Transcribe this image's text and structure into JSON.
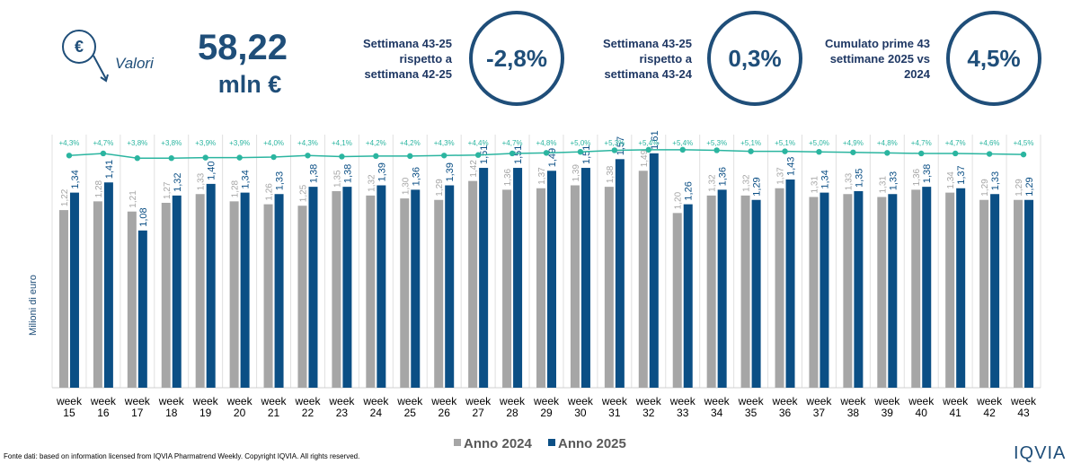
{
  "header": {
    "icon_label": "Valori",
    "total": "58,22",
    "unit": "mln €"
  },
  "kpis": [
    {
      "label": "Settimana 43-25 rispetto a settimana 42-25",
      "value": "-2,8%"
    },
    {
      "label": "Settimana 43-25 rispetto a settimana 43-24",
      "value": "0,3%"
    },
    {
      "label": "Cumulato prime 43 settimane 2025 vs 2024",
      "value": "4,5%"
    }
  ],
  "chart_data": {
    "type": "bar",
    "y_label": "Milioni di euro",
    "categories": [
      "week 15",
      "week 16",
      "week 17",
      "week 18",
      "week 19",
      "week 20",
      "week 21",
      "week 22",
      "week 23",
      "week 24",
      "week 25",
      "week 26",
      "week 27",
      "week 28",
      "week 29",
      "week 30",
      "week 31",
      "week 32",
      "week 33",
      "week 34",
      "week 35",
      "week 36",
      "week 37",
      "week 38",
      "week 39",
      "week 40",
      "week 41",
      "week 42",
      "week 43"
    ],
    "ylim": [
      0,
      1.8
    ],
    "y2lim": [
      -40,
      10
    ],
    "series": [
      {
        "name": "Anno 2024",
        "color": "#a6a6a6",
        "values": [
          1.22,
          1.28,
          1.21,
          1.27,
          1.33,
          1.28,
          1.26,
          1.25,
          1.35,
          1.32,
          1.3,
          1.29,
          1.42,
          1.36,
          1.37,
          1.39,
          1.38,
          1.49,
          1.2,
          1.32,
          1.32,
          1.37,
          1.31,
          1.33,
          1.31,
          1.36,
          1.34,
          1.29,
          1.29
        ],
        "value_labels": [
          "1,22",
          "1,28",
          "1,21",
          "1,27",
          "1,33",
          "1,28",
          "1,26",
          "1,25",
          "1,35",
          "1,32",
          "1,30",
          "1,29",
          "1,42",
          "1,36",
          "1,37",
          "1,39",
          "1,38",
          "1,49",
          "1,20",
          "1,32",
          "1,32",
          "1,37",
          "1,31",
          "1,33",
          "1,31",
          "1,36",
          "1,34",
          "1,29",
          "1,29"
        ]
      },
      {
        "name": "Anno 2025",
        "color": "#0b4f85",
        "values": [
          1.34,
          1.41,
          1.08,
          1.32,
          1.4,
          1.34,
          1.33,
          1.38,
          1.38,
          1.39,
          1.36,
          1.39,
          1.51,
          1.51,
          1.49,
          1.51,
          1.57,
          1.61,
          1.26,
          1.36,
          1.29,
          1.43,
          1.34,
          1.35,
          1.33,
          1.38,
          1.37,
          1.33,
          1.29
        ],
        "value_labels": [
          "1,34",
          "1,41",
          "1,08",
          "1,32",
          "1,40",
          "1,34",
          "1,33",
          "1,38",
          "1,38",
          "1,39",
          "1,36",
          "1,39",
          "1,51",
          "1,51",
          "1,49",
          "1,51",
          "1,57",
          "1,61",
          "1,26",
          "1,36",
          "1,29",
          "1,43",
          "1,34",
          "1,35",
          "1,33",
          "1,38",
          "1,37",
          "1,33",
          "1,29"
        ]
      },
      {
        "type": "line",
        "axis": "y2",
        "color": "#2bb5a0",
        "values": [
          4.3,
          4.7,
          3.8,
          3.8,
          3.9,
          3.9,
          4.0,
          4.3,
          4.1,
          4.2,
          4.2,
          4.3,
          4.4,
          4.7,
          4.8,
          5.0,
          5.3,
          5.4,
          5.4,
          5.3,
          5.1,
          5.1,
          5.0,
          4.9,
          4.8,
          4.7,
          4.7,
          4.6,
          4.5
        ],
        "value_labels": [
          "+4,3%",
          "+4,7%",
          "+3,8%",
          "+3,8%",
          "+3,9%",
          "+3,9%",
          "+4,0%",
          "+4,3%",
          "+4,1%",
          "+4,2%",
          "+4,2%",
          "+4,3%",
          "+4,4%",
          "+4,7%",
          "+4,8%",
          "+5,0%",
          "+5,3%",
          "+5,4%",
          "+5,4%",
          "+5,3%",
          "+5,1%",
          "+5,1%",
          "+5,0%",
          "+4,9%",
          "+4,8%",
          "+4,7%",
          "+4,7%",
          "+4,6%",
          "+4,5%"
        ]
      }
    ]
  },
  "footer": {
    "source": "Fonte dati: based on information licensed from IQVIA Pharmatrend Weekly. Copyright IQVIA. All rights reserved.",
    "logo": "IQVIA"
  }
}
